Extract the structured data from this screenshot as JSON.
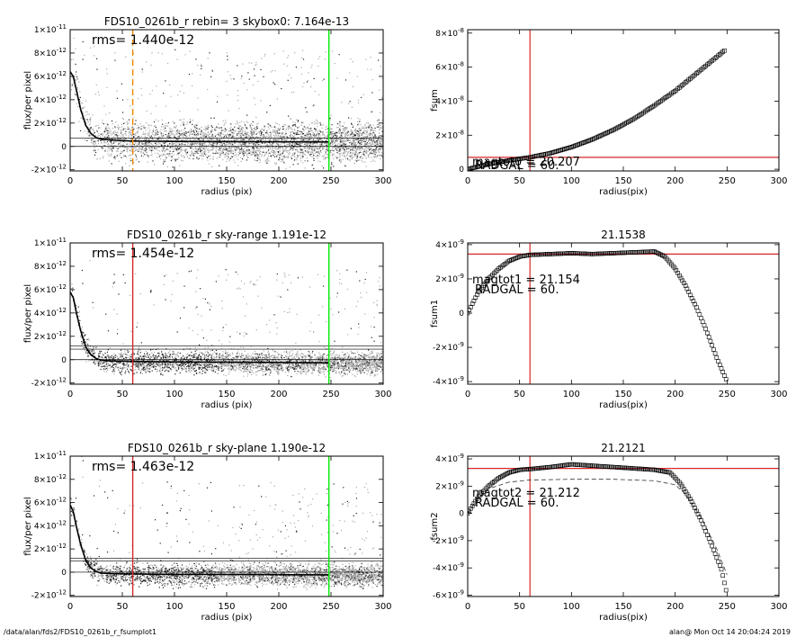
{
  "footer": {
    "left": "/data/alan/fds2/FDS10_0261b_r_fsumplot1",
    "right": "alan@  Mon Oct 14 20:04:24 2019"
  },
  "colors": {
    "point_dark": "#222222",
    "point_light": "#aaaaaa",
    "profile": "#000000",
    "red": "#d62728",
    "green": "#00ee00",
    "orange": "#ee8800"
  },
  "chart_data": [
    {
      "id": "profile-1",
      "type": "scatter",
      "title": "FDS10_0261b_r rebin= 3   skybox0:  7.164e-13",
      "xlabel": "radius (pix)",
      "ylabel": "flux/per pixel",
      "xlim": [
        0,
        300
      ],
      "ylim": [
        -2.1e-12,
        1e-11
      ],
      "xticks": [
        "0",
        "50",
        "100",
        "150",
        "200",
        "250",
        "300"
      ],
      "yticks": [
        {
          "value": -2e-12,
          "mant": "-2×10",
          "exp": "-12"
        },
        {
          "value": 0,
          "mant": "0",
          "exp": ""
        },
        {
          "value": 2e-12,
          "mant": "2×10",
          "exp": "-12"
        },
        {
          "value": 4e-12,
          "mant": "4×10",
          "exp": "-12"
        },
        {
          "value": 6e-12,
          "mant": "6×10",
          "exp": "-12"
        },
        {
          "value": 8e-12,
          "mant": "8×10",
          "exp": "-12"
        },
        {
          "value": 1e-11,
          "mant": "1×10",
          "exp": "-11"
        }
      ],
      "annotation": "rms= 1.440e-12",
      "hlines": [
        0,
        7.164e-13
      ],
      "vlines": [
        {
          "x": 60,
          "color": "orange",
          "dash": true
        },
        {
          "x": 248,
          "color": "green",
          "dash": false
        }
      ],
      "profile": [
        [
          0,
          6.4e-12
        ],
        [
          3,
          6e-12
        ],
        [
          6,
          4.8e-12
        ],
        [
          10,
          3.2e-12
        ],
        [
          15,
          1.8e-12
        ],
        [
          20,
          1.1e-12
        ],
        [
          25,
          7.5e-13
        ],
        [
          30,
          6.2e-13
        ],
        [
          40,
          5.5e-13
        ],
        [
          50,
          5e-13
        ],
        [
          60,
          4.6e-13
        ],
        [
          80,
          4.4e-13
        ],
        [
          100,
          4.3e-13
        ],
        [
          120,
          4.2e-13
        ],
        [
          150,
          4.1e-13
        ],
        [
          180,
          4e-13
        ],
        [
          210,
          3.9e-13
        ],
        [
          248,
          3.8e-13
        ]
      ],
      "scatter_style": "dense"
    },
    {
      "id": "curve-1",
      "type": "scatter",
      "title": "",
      "xlabel": "radius(pix)",
      "ylabel": "fsum",
      "xlim": [
        0,
        300
      ],
      "ylim": [
        -1e-09,
        8.2e-08
      ],
      "xticks": [
        "0",
        "50",
        "100",
        "150",
        "200",
        "250",
        "300"
      ],
      "yticks": [
        {
          "value": 0,
          "mant": "0",
          "exp": ""
        },
        {
          "value": 2e-08,
          "mant": "2×10",
          "exp": "-8"
        },
        {
          "value": 4e-08,
          "mant": "4×10",
          "exp": "-8"
        },
        {
          "value": 6e-08,
          "mant": "6×10",
          "exp": "-8"
        },
        {
          "value": 8e-08,
          "mant": "8×10",
          "exp": "-8"
        }
      ],
      "labels": [
        "magtot0 =  20.207",
        "RADGAL =    60."
      ],
      "hline": 7e-09,
      "vline": 60,
      "curve": [
        [
          0,
          0
        ],
        [
          20,
          3e-09
        ],
        [
          40,
          5.2e-09
        ],
        [
          60,
          7e-09
        ],
        [
          80,
          9.5e-09
        ],
        [
          100,
          1.3e-08
        ],
        [
          120,
          1.75e-08
        ],
        [
          140,
          2.3e-08
        ],
        [
          160,
          2.95e-08
        ],
        [
          180,
          3.75e-08
        ],
        [
          200,
          4.6e-08
        ],
        [
          220,
          5.6e-08
        ],
        [
          248,
          7e-08
        ]
      ]
    },
    {
      "id": "profile-2",
      "type": "scatter",
      "title": "FDS10_0261b_r sky-range  1.191e-12",
      "xlabel": "radius (pix)",
      "ylabel": "flux/per pixel",
      "xlim": [
        0,
        300
      ],
      "ylim": [
        -2.1e-12,
        1e-11
      ],
      "xticks": [
        "0",
        "50",
        "100",
        "150",
        "200",
        "250",
        "300"
      ],
      "yticks": [
        {
          "value": -2e-12,
          "mant": "-2×10",
          "exp": "-12"
        },
        {
          "value": 0,
          "mant": "0",
          "exp": ""
        },
        {
          "value": 2e-12,
          "mant": "2×10",
          "exp": "-12"
        },
        {
          "value": 4e-12,
          "mant": "4×10",
          "exp": "-12"
        },
        {
          "value": 6e-12,
          "mant": "6×10",
          "exp": "-12"
        },
        {
          "value": 8e-12,
          "mant": "8×10",
          "exp": "-12"
        },
        {
          "value": 1e-11,
          "mant": "1×10",
          "exp": "-11"
        }
      ],
      "annotation": "rms= 1.454e-12",
      "hlines": [
        0,
        1.191e-12,
        9e-13
      ],
      "vlines": [
        {
          "x": 60,
          "color": "red",
          "dash": false
        },
        {
          "x": 248,
          "color": "green",
          "dash": false
        }
      ],
      "profile": [
        [
          0,
          5.8e-12
        ],
        [
          3,
          5.3e-12
        ],
        [
          6,
          4e-12
        ],
        [
          10,
          2.5e-12
        ],
        [
          15,
          1.1e-12
        ],
        [
          20,
          4e-13
        ],
        [
          25,
          1e-13
        ],
        [
          30,
          -5e-14
        ],
        [
          40,
          -1.2e-13
        ],
        [
          60,
          -1.5e-13
        ],
        [
          80,
          -1.8e-13
        ],
        [
          100,
          -2e-13
        ],
        [
          140,
          -2.1e-13
        ],
        [
          180,
          -2.3e-13
        ],
        [
          210,
          -2.5e-13
        ],
        [
          248,
          -2.7e-13
        ]
      ],
      "scatter_style": "sparse"
    },
    {
      "id": "curve-2",
      "type": "scatter",
      "title": "21.1538",
      "xlabel": "radius(pix)",
      "ylabel": "fsum1",
      "xlim": [
        0,
        300
      ],
      "ylim": [
        -4.15e-09,
        4.1e-09
      ],
      "xticks": [
        "0",
        "50",
        "100",
        "150",
        "200",
        "250",
        "300"
      ],
      "yticks": [
        {
          "value": -4e-09,
          "mant": "-4×10",
          "exp": "-9"
        },
        {
          "value": -2e-09,
          "mant": "-2×10",
          "exp": "-9"
        },
        {
          "value": 0,
          "mant": "0",
          "exp": ""
        },
        {
          "value": 2e-09,
          "mant": "2×10",
          "exp": "-9"
        },
        {
          "value": 4e-09,
          "mant": "4×10",
          "exp": "-9"
        }
      ],
      "labels": [
        "magtot1 =  21.154",
        "RADGAL =    60."
      ],
      "hline": 3.45e-09,
      "vline": 60,
      "curve": [
        [
          0,
          0
        ],
        [
          10,
          1.2e-09
        ],
        [
          20,
          2e-09
        ],
        [
          30,
          2.6e-09
        ],
        [
          40,
          3.05e-09
        ],
        [
          50,
          3.3e-09
        ],
        [
          60,
          3.4e-09
        ],
        [
          80,
          3.45e-09
        ],
        [
          100,
          3.5e-09
        ],
        [
          120,
          3.45e-09
        ],
        [
          140,
          3.5e-09
        ],
        [
          160,
          3.55e-09
        ],
        [
          180,
          3.6e-09
        ],
        [
          190,
          3.3e-09
        ],
        [
          200,
          2.6e-09
        ],
        [
          210,
          1.6e-09
        ],
        [
          220,
          4e-10
        ],
        [
          230,
          -1e-09
        ],
        [
          240,
          -2.6e-09
        ],
        [
          250,
          -4e-09
        ]
      ]
    },
    {
      "id": "profile-3",
      "type": "scatter",
      "title": "FDS10_0261b_r sky-plane  1.190e-12",
      "xlabel": "radius (pix)",
      "ylabel": "flux/per pixel",
      "xlim": [
        0,
        300
      ],
      "ylim": [
        -2.1e-12,
        1e-11
      ],
      "xticks": [
        "0",
        "50",
        "100",
        "150",
        "200",
        "250",
        "300"
      ],
      "yticks": [
        {
          "value": -2e-12,
          "mant": "-2×10",
          "exp": "-12"
        },
        {
          "value": 0,
          "mant": "0",
          "exp": ""
        },
        {
          "value": 2e-12,
          "mant": "2×10",
          "exp": "-12"
        },
        {
          "value": 4e-12,
          "mant": "4×10",
          "exp": "-12"
        },
        {
          "value": 6e-12,
          "mant": "6×10",
          "exp": "-12"
        },
        {
          "value": 8e-12,
          "mant": "8×10",
          "exp": "-12"
        },
        {
          "value": 1e-11,
          "mant": "1×10",
          "exp": "-11"
        }
      ],
      "annotation": "rms= 1.463e-12",
      "hlines": [
        0,
        1.19e-12,
        9.5e-13
      ],
      "vlines": [
        {
          "x": 60,
          "color": "red",
          "dash": false
        },
        {
          "x": 248,
          "color": "green",
          "dash": false
        }
      ],
      "profile": [
        [
          0,
          5.8e-12
        ],
        [
          3,
          5.2e-12
        ],
        [
          6,
          3.9e-12
        ],
        [
          10,
          2.4e-12
        ],
        [
          15,
          1e-12
        ],
        [
          20,
          3.5e-13
        ],
        [
          25,
          5e-14
        ],
        [
          30,
          -8e-14
        ],
        [
          40,
          -1.3e-13
        ],
        [
          60,
          -1.5e-13
        ],
        [
          80,
          -1.8e-13
        ],
        [
          100,
          -1.9e-13
        ],
        [
          140,
          -2e-13
        ],
        [
          180,
          -2.1e-13
        ],
        [
          210,
          -2.2e-13
        ],
        [
          248,
          -2.3e-13
        ]
      ],
      "scatter_style": "sparse"
    },
    {
      "id": "curve-3",
      "type": "scatter",
      "title": "21.2121",
      "xlabel": "radius(pix)",
      "ylabel": "fsum2",
      "xlim": [
        0,
        300
      ],
      "ylim": [
        -6.1e-09,
        4.2e-09
      ],
      "xticks": [
        "0",
        "50",
        "100",
        "150",
        "200",
        "250",
        "300"
      ],
      "yticks": [
        {
          "value": -6e-09,
          "mant": "-6×10",
          "exp": "-9"
        },
        {
          "value": -4e-09,
          "mant": "-4×10",
          "exp": "-9"
        },
        {
          "value": -2e-09,
          "mant": "-2×10",
          "exp": "-9"
        },
        {
          "value": 0,
          "mant": "0",
          "exp": ""
        },
        {
          "value": 2e-09,
          "mant": "2×10",
          "exp": "-9"
        },
        {
          "value": 4e-09,
          "mant": "4×10",
          "exp": "-9"
        }
      ],
      "labels": [
        "magtot2 =  21.212",
        "RADGAL =    60."
      ],
      "hline": 3.3e-09,
      "vline": 60,
      "curve": [
        [
          0,
          0
        ],
        [
          10,
          1.2e-09
        ],
        [
          20,
          2e-09
        ],
        [
          30,
          2.6e-09
        ],
        [
          40,
          3e-09
        ],
        [
          50,
          3.2e-09
        ],
        [
          60,
          3.25e-09
        ],
        [
          80,
          3.4e-09
        ],
        [
          100,
          3.6e-09
        ],
        [
          120,
          3.5e-09
        ],
        [
          140,
          3.4e-09
        ],
        [
          160,
          3.3e-09
        ],
        [
          180,
          3.2e-09
        ],
        [
          195,
          3e-09
        ],
        [
          205,
          2.2e-09
        ],
        [
          215,
          1e-09
        ],
        [
          225,
          -5e-10
        ],
        [
          235,
          -2.3e-09
        ],
        [
          245,
          -4.2e-09
        ],
        [
          250,
          -6e-09
        ]
      ],
      "dashed": [
        [
          0,
          0
        ],
        [
          10,
          1.1e-09
        ],
        [
          20,
          1.8e-09
        ],
        [
          40,
          2.3e-09
        ],
        [
          60,
          2.45e-09
        ],
        [
          100,
          2.5e-09
        ],
        [
          140,
          2.5e-09
        ],
        [
          180,
          2.4e-09
        ],
        [
          200,
          2.1e-09
        ],
        [
          210,
          1.4e-09
        ],
        [
          225,
          -3e-10
        ],
        [
          240,
          -2.6e-09
        ],
        [
          250,
          -4.5e-09
        ]
      ]
    }
  ]
}
